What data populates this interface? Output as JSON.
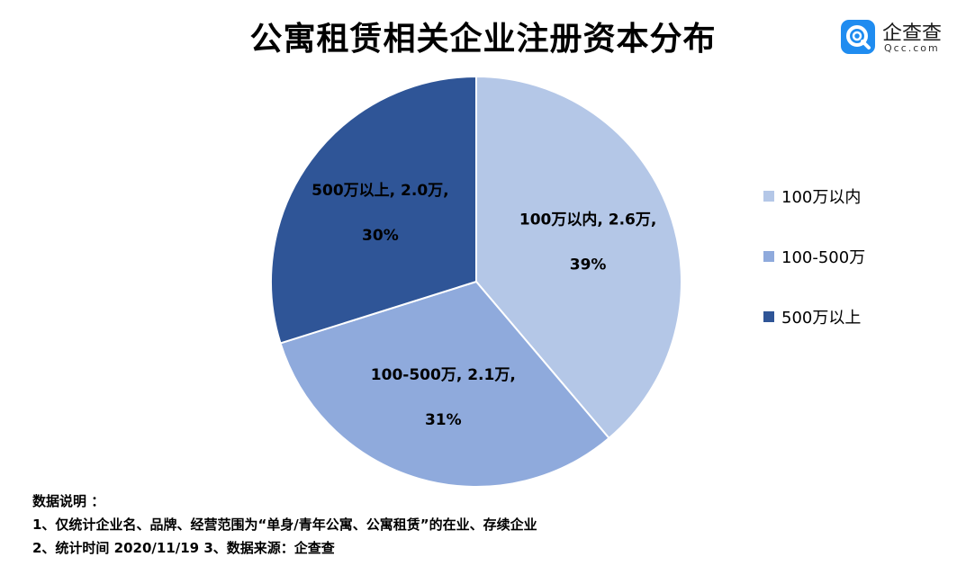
{
  "title": "公寓租赁相关企业注册资本分布",
  "logo": {
    "name": "企查查",
    "url": "Qcc.com",
    "icon": "qcc-logo-icon",
    "color": "#1f8cf0"
  },
  "chart_data": {
    "type": "pie",
    "title": "公寓租赁相关企业注册资本分布",
    "unit": "万",
    "slices": [
      {
        "label": "100万以内",
        "value": 2.6,
        "value_text": "2.6万",
        "percent": "39%",
        "color": "#b4c7e7"
      },
      {
        "label": "100-500万",
        "value": 2.1,
        "value_text": "2.1万",
        "percent": "31%",
        "color": "#8faadc"
      },
      {
        "label": "500万以上",
        "value": 2.0,
        "value_text": "2.0万",
        "percent": "30%",
        "color": "#2f5597"
      }
    ],
    "legend_position": "right"
  },
  "notes": {
    "heading": "数据说明 ：",
    "line1": "1、仅统计企业名、品牌、经营范围为“单身/青年公寓、公寓租赁”的在业、存续企业",
    "line2": "2、统计时间 2020/11/19   3、数据来源：企查查"
  }
}
